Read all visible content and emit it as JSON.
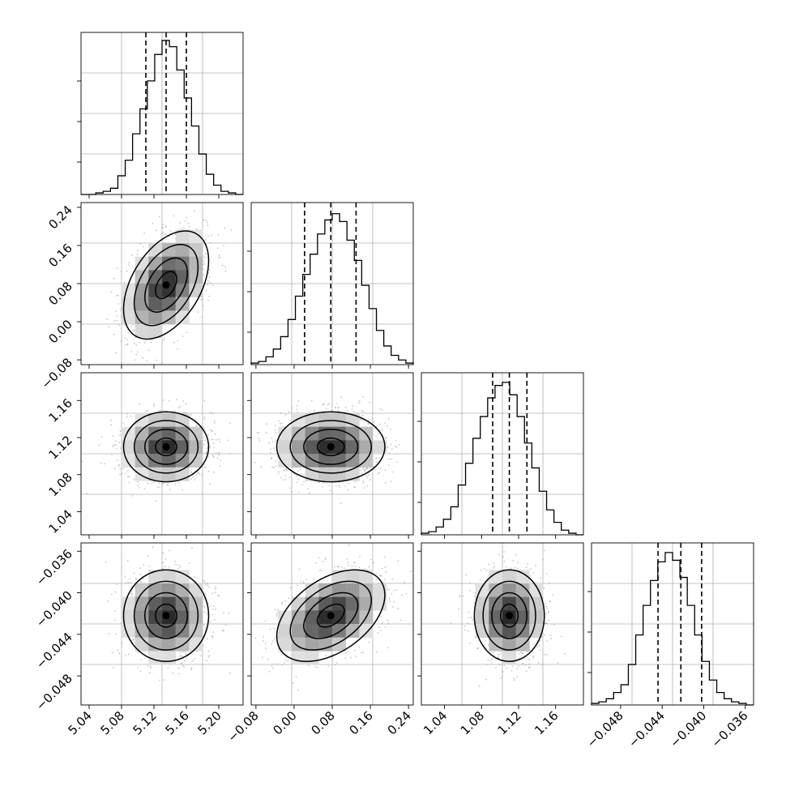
{
  "chart_data": {
    "type": "corner",
    "grid": true,
    "parameters": [
      {
        "range": [
          5.03,
          5.23
        ],
        "ticks": [
          "5.04",
          "5.08",
          "5.12",
          "5.16",
          "5.20"
        ],
        "tick_values": [
          5.04,
          5.08,
          5.12,
          5.16,
          5.2
        ],
        "quantiles": [
          5.11,
          5.135,
          5.16
        ],
        "mean": 5.135,
        "sd": 0.025
      },
      {
        "range": [
          -0.09,
          0.25
        ],
        "ticks": [
          "-0.08",
          "0.00",
          "0.08",
          "0.16",
          "0.24"
        ],
        "tick_values": [
          -0.08,
          0.0,
          0.08,
          0.16,
          0.24
        ],
        "quantiles": [
          0.022,
          0.077,
          0.13
        ],
        "mean": 0.077,
        "sd": 0.054
      },
      {
        "range": [
          1.015,
          1.19
        ],
        "ticks": [
          "1.04",
          "1.08",
          "1.12",
          "1.16"
        ],
        "tick_values": [
          1.04,
          1.08,
          1.12,
          1.16
        ],
        "quantiles": [
          1.092,
          1.11,
          1.129
        ],
        "mean": 1.11,
        "sd": 0.018
      },
      {
        "range": [
          -0.0508,
          -0.0352
        ],
        "ticks": [
          "-0.048",
          "-0.044",
          "-0.040",
          "-0.036"
        ],
        "tick_values": [
          -0.048,
          -0.044,
          -0.04,
          -0.036
        ],
        "quantiles": [
          -0.0444,
          -0.0422,
          -0.0402
        ],
        "mean": -0.0422,
        "sd": 0.0021
      }
    ],
    "histograms": [
      {
        "param": 0,
        "counts": [
          0.0,
          0.0,
          0.01,
          0.02,
          0.04,
          0.12,
          0.22,
          0.39,
          0.55,
          0.73,
          0.9,
          0.99,
          0.95,
          0.8,
          0.62,
          0.44,
          0.26,
          0.13,
          0.06,
          0.02,
          0.01,
          0.0
        ]
      },
      {
        "param": 1,
        "counts": [
          0.01,
          0.02,
          0.05,
          0.1,
          0.18,
          0.29,
          0.44,
          0.58,
          0.71,
          0.84,
          0.93,
          0.97,
          0.92,
          0.8,
          0.67,
          0.51,
          0.36,
          0.22,
          0.12,
          0.06,
          0.03,
          0.01
        ]
      },
      {
        "param": 2,
        "counts": [
          0.01,
          0.02,
          0.05,
          0.1,
          0.18,
          0.32,
          0.46,
          0.62,
          0.76,
          0.88,
          0.96,
          0.98,
          0.9,
          0.76,
          0.59,
          0.43,
          0.28,
          0.16,
          0.08,
          0.03,
          0.01,
          0.0
        ]
      },
      {
        "param": 3,
        "counts": [
          0.01,
          0.02,
          0.04,
          0.08,
          0.13,
          0.26,
          0.45,
          0.64,
          0.8,
          0.92,
          0.98,
          0.93,
          0.82,
          0.64,
          0.45,
          0.28,
          0.16,
          0.08,
          0.04,
          0.02,
          0.01,
          0.0
        ]
      }
    ],
    "pairs": [
      {
        "x": 0,
        "y": 1,
        "rho": 0.45
      },
      {
        "x": 0,
        "y": 2,
        "rho": 0.0
      },
      {
        "x": 1,
        "y": 2,
        "rho": 0.0
      },
      {
        "x": 0,
        "y": 3,
        "rho": 0.0
      },
      {
        "x": 1,
        "y": 3,
        "rho": 0.45
      },
      {
        "x": 2,
        "y": 3,
        "rho": 0.0
      }
    ],
    "contour_levels_sigma": [
      0.5,
      1.0,
      1.5,
      2.0
    ]
  }
}
